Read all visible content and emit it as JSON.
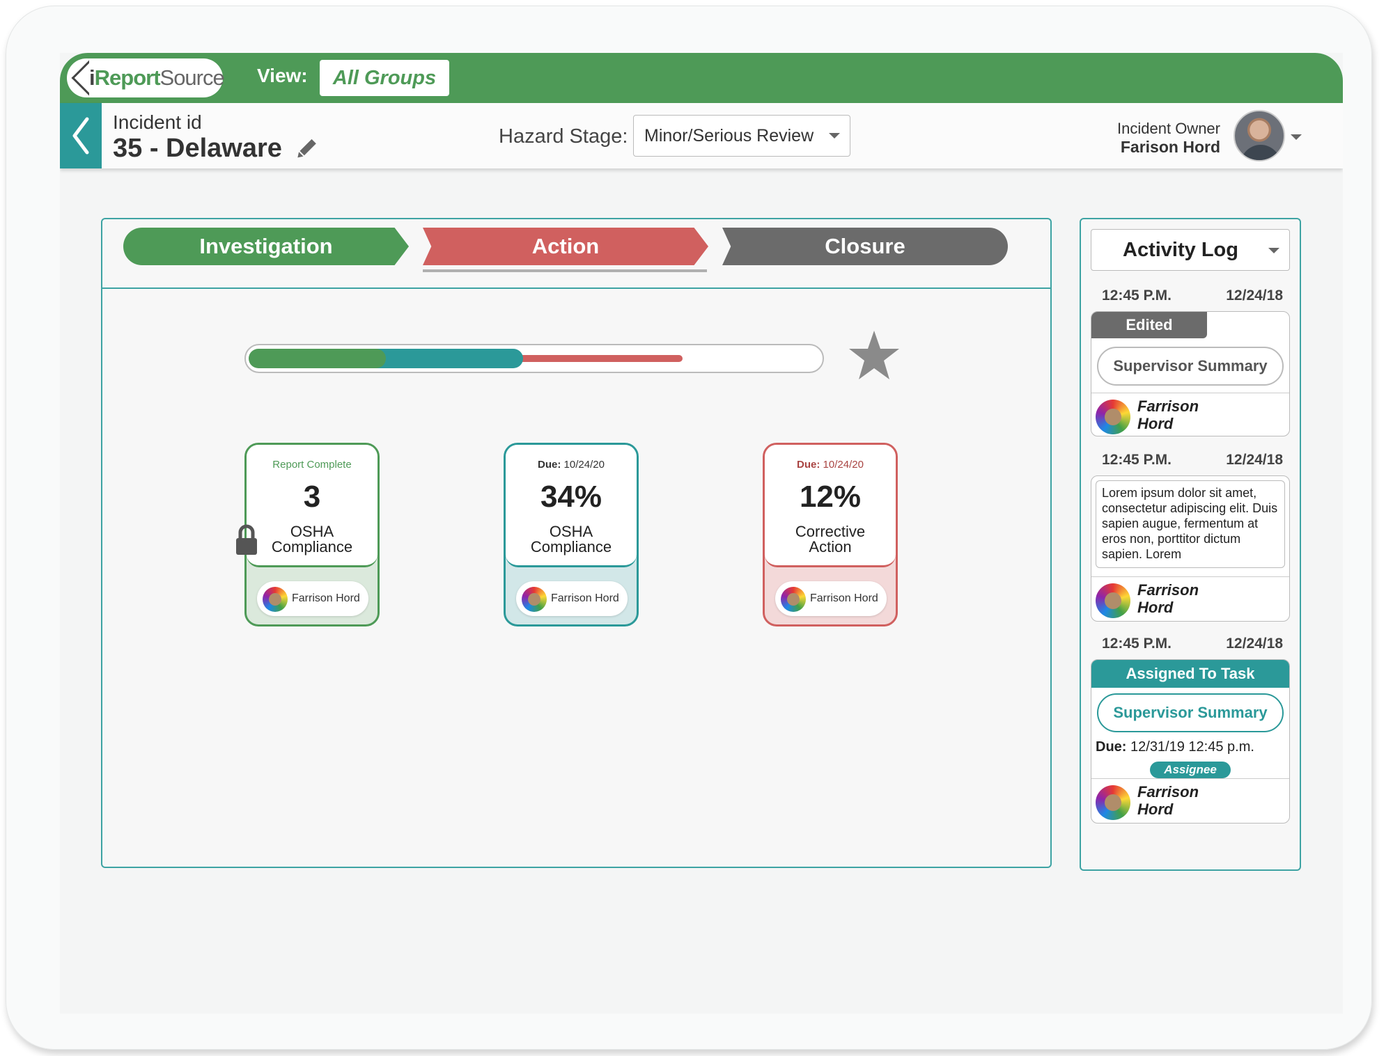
{
  "app": {
    "logo_i": "i",
    "logo_report": "Report",
    "logo_source": "Source",
    "view_label": "View:",
    "view_value": "All Groups",
    "brand_green": "#4e9a57",
    "brand_teal": "#2b9999",
    "brand_red": "#d0605f"
  },
  "header": {
    "incident_label": "Incident id",
    "incident_title": "35 - Delaware",
    "hazard_label": "Hazard Stage:",
    "hazard_value": "Minor/Serious Review",
    "owner_label": "Incident Owner",
    "owner_name": "Farison Hord"
  },
  "stages": {
    "investigation": "Investigation",
    "action": "Action",
    "closure": "Closure",
    "active": "Action"
  },
  "progress": {
    "investigation_fraction": 0.24,
    "action_fraction": 0.24,
    "closure_fraction": 0.28
  },
  "cards": [
    {
      "status_prefix": "",
      "status_text": "Report Complete",
      "value": "3",
      "line1": "OSHA",
      "line2": "Compliance",
      "assignee": "Farrison Hord",
      "locked": true
    },
    {
      "status_prefix": "Due:",
      "status_text": " 10/24/20",
      "value": "34%",
      "line1": "OSHA",
      "line2": "Compliance",
      "assignee": "Farrison Hord"
    },
    {
      "status_prefix": "Due:",
      "status_text": " 10/24/20",
      "value": "12%",
      "line1": "Corrective",
      "line2": "Action",
      "assignee": "Farrison Hord"
    }
  ],
  "activity_log": {
    "title": "Activity Log",
    "entries": [
      {
        "time": "12:45 P.M.",
        "date": "12/24/18",
        "tag": "Edited",
        "button": "Supervisor Summary",
        "user_first": "Farrison",
        "user_last": "Hord"
      },
      {
        "time": "12:45 P.M.",
        "date": "12/24/18",
        "note": "Lorem ipsum dolor sit amet, consectetur adipiscing elit. Duis sapien augue, fermentum at eros non, porttitor dictum sapien. Lorem",
        "user_first": "Farrison",
        "user_last": "Hord"
      },
      {
        "time": "12:45 P.M.",
        "date": "12/24/18",
        "tag": "Assigned To Task",
        "button": "Supervisor Summary",
        "due_label": "Due:",
        "due_value": " 12/31/19  12:45 p.m.",
        "assignee_tag": "Assignee",
        "user_first": "Farrison",
        "user_last": "Hord"
      }
    ]
  }
}
